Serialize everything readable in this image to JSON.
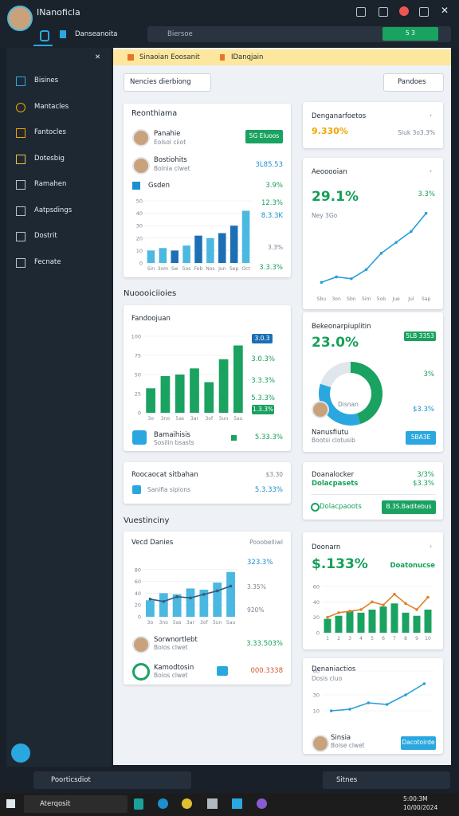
{
  "window": {
    "title": "INanoficla",
    "tab": "Danseanoita",
    "search": "Biersoe",
    "badge": "5 3"
  },
  "sidebar": {
    "items": [
      "Bisines",
      "Mantacles",
      "Fantocles",
      "Dotesbig",
      "Ramahen",
      "Aatpsdings",
      "Dostrit",
      "Fecnate"
    ]
  },
  "banner": [
    "Sinaoian Eoosanit",
    "IDanqjain"
  ],
  "filters": {
    "left": "Nencies dierbiong",
    "right": "Pandoes"
  },
  "sections": [
    "Nuoooiciioies",
    "Vuestinciny"
  ],
  "cards": {
    "a": {
      "title": "Reonthiama",
      "rows": [
        {
          "name": "Panahie",
          "sub": "Eolsol ciiot",
          "action": "5G Eluoos"
        },
        {
          "name": "Bostiohits",
          "sub": "Bolnia clwet",
          "value": "3L85.53"
        },
        {
          "name": "Gsden",
          "value": "3.9%"
        }
      ],
      "side": [
        "12.3%",
        "8.3.3K",
        "3.3%",
        "3.3.3%"
      ],
      "chart": {
        "type": "bar",
        "categories": [
          "Sin",
          "3om",
          "Sw",
          "5os",
          "Feb",
          "Nos",
          "Jun",
          "Sep",
          "Oct"
        ],
        "values": [
          10,
          12,
          10,
          14,
          22,
          20,
          24,
          30,
          42
        ],
        "colors": [
          "#4ab8e0",
          "#4ab8e0",
          "#1d6fb5",
          "#4ab8e0",
          "#1d6fb5",
          "#4ab8e0",
          "#1d6fb5",
          "#1d6fb5",
          "#4ab8e0"
        ],
        "ylim": [
          0,
          50
        ],
        "yticks": [
          0,
          10,
          20,
          30,
          40,
          50
        ]
      }
    },
    "b": {
      "title": "Fandoojuan",
      "side": [
        "3.0.3",
        "3.0.3%",
        "3.3.3%",
        "5.3.3%",
        "1.3.3%"
      ],
      "footer": {
        "name": "Bamaihisis",
        "sub": "Sosilin bsasts",
        "value": "5.33.3%"
      },
      "chart": {
        "type": "bar",
        "categories": [
          "3o",
          "3no",
          "5as",
          "3ar",
          "3of",
          "5un",
          "5au"
        ],
        "values": [
          32,
          48,
          50,
          58,
          40,
          70,
          88
        ],
        "color": "#1aa260",
        "ylim": [
          0,
          100
        ],
        "yticks": [
          0,
          25,
          50,
          75,
          100
        ]
      }
    },
    "c": {
      "title": "Roocaocat sitbahan",
      "value": "$3.30",
      "sub": "Sanifia sipions",
      "subvalue": "5.3.33%"
    },
    "d": {
      "title": "Vecd Danies",
      "right": "Pooobelliwl",
      "side": [
        "323.3%",
        "3.35%",
        "920%"
      ],
      "rows": [
        {
          "name": "Sorwnortlebt",
          "sub": "Bolos clwet",
          "value": "3.33.503%"
        },
        {
          "name": "Kamodtosin",
          "sub": "Bolos clwet",
          "value": "000.3338"
        }
      ],
      "chart": {
        "type": "bar",
        "categories": [
          "3o",
          "3no",
          "5as",
          "3ar",
          "3of",
          "5un",
          "5au"
        ],
        "values": [
          28,
          40,
          38,
          48,
          46,
          58,
          76
        ],
        "color": "#4ab8e0",
        "line": [
          30,
          26,
          34,
          32,
          38,
          44,
          52
        ],
        "line_color": "#3a5a7a",
        "ylim": [
          0,
          100
        ],
        "yticks": [
          0,
          20,
          40,
          60,
          80
        ]
      }
    },
    "e": {
      "title": "Denganarfoetos",
      "value": "9.330%",
      "note": "Siuk 3o3.3%"
    },
    "f": {
      "title": "Aeooooian",
      "value": "29.1%",
      "change": "3.3%",
      "note": "Ney 3Go",
      "chart": {
        "type": "line",
        "categories": [
          "Sbu",
          "3on",
          "Sbn",
          "5im",
          "5ob",
          "Jue",
          "Jul",
          "Sap"
        ],
        "values": [
          6,
          9,
          8,
          13,
          22,
          28,
          34,
          44
        ],
        "color": "#2a9fd6",
        "ylim": [
          0,
          50
        ]
      }
    },
    "g": {
      "title": "Bekeonarpiuplitin",
      "value": "23.0%",
      "tag": "5LB 3353",
      "change": "3%",
      "amount": "$3.3%",
      "label": "Disnan",
      "footer": {
        "name": "Nanusfiutu",
        "sub": "Bootsi clotusib",
        "action": "5BA3E"
      },
      "chart": {
        "type": "donut",
        "values": [
          45,
          35,
          20
        ],
        "colors": [
          "#1aa260",
          "#2aa7df",
          "#dfe6ec"
        ]
      }
    },
    "h": {
      "title": "Doanalocker",
      "value": "3/3%",
      "sub": "Dolacpasets",
      "subvalue": "$3.3%",
      "foot": "Dolacpaoots",
      "action": "B.3S.Baditebus"
    },
    "i": {
      "title": "Doonarn",
      "value": "$.133%",
      "tag": "Doatonucse",
      "chart": {
        "type": "bar",
        "categories": [
          "1",
          "2",
          "3",
          "4",
          "5",
          "6",
          "7",
          "8",
          "9",
          "10"
        ],
        "values": [
          18,
          22,
          28,
          26,
          30,
          34,
          38,
          26,
          22,
          30
        ],
        "color": "#1aa260",
        "line": [
          20,
          26,
          28,
          30,
          40,
          36,
          50,
          38,
          30,
          46
        ],
        "line_color": "#e0822a",
        "ylim": [
          0,
          60
        ],
        "yticks": [
          0,
          20,
          40,
          60
        ]
      }
    },
    "j": {
      "title": "Denaniactios",
      "sub": "Dosis cluo",
      "person": "Sinsia",
      "personsub": "Bolse clwet",
      "action": "Dacotoirde",
      "chart": {
        "type": "line",
        "values": [
          10,
          12,
          20,
          18,
          30,
          44
        ],
        "color": "#2a9fd6",
        "ylim": [
          0,
          60
        ],
        "yticks": [
          10,
          30,
          60
        ]
      }
    }
  },
  "footer": {
    "search": "Poorticsdiot",
    "right": "Sitnes"
  },
  "taskbar": {
    "search": "Aterqosit",
    "time": "5:00:3M",
    "date": "10/00/2024"
  }
}
